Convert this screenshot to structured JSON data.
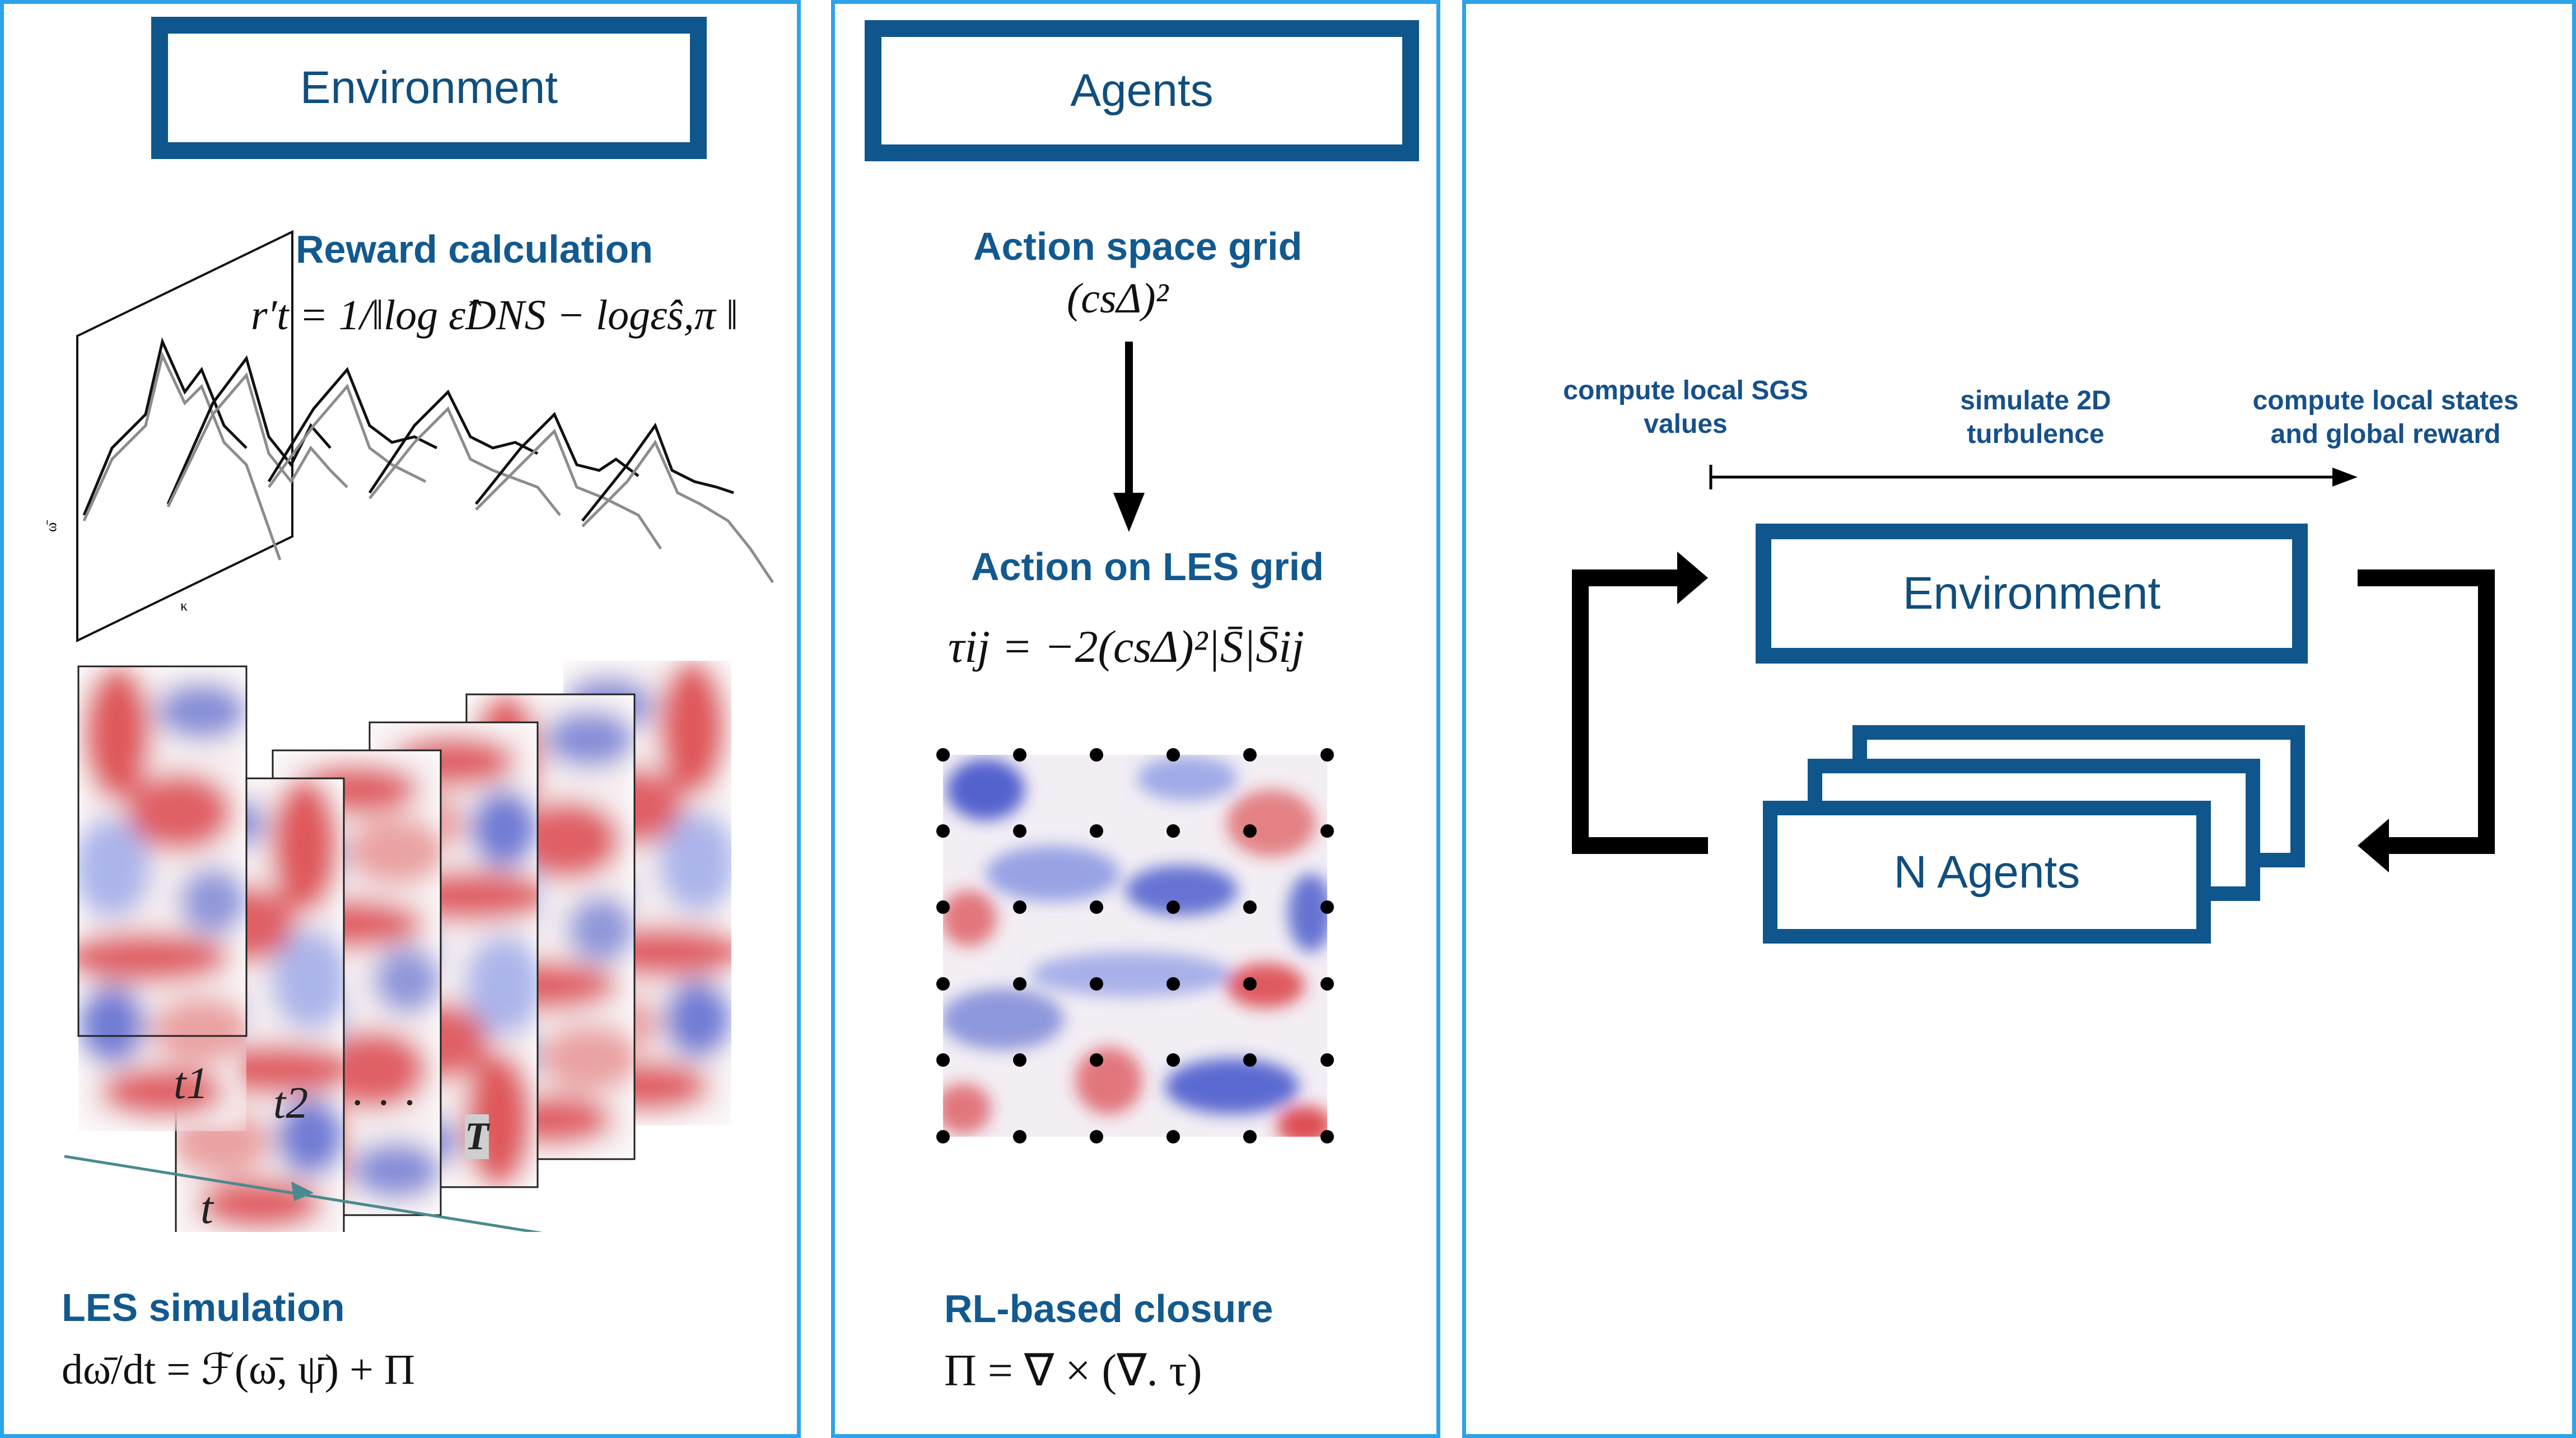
{
  "colors": {
    "panel_border": "#2ea3ea",
    "box_border": "#0f568c",
    "heading_blue": "#12598f",
    "vortex_red": "#d7252b",
    "vortex_blue": "#2a3fc4"
  },
  "left_panel": {
    "title": "Environment",
    "reward_heading": "Reward calculation",
    "reward_formula": "r′t = 1/‖log ε̂DNS − logε̂s,π ‖",
    "spectrum_axis_y": "ω̄",
    "spectrum_axis_x": "κ",
    "time_labels": [
      "t1",
      "t2",
      "· · ·",
      "T"
    ],
    "time_axis_label": "t",
    "les_heading": "LES simulation",
    "les_formula": "dω̄/dt = ℱ(ω̄, ψ̄) + Π"
  },
  "middle_panel": {
    "title": "Agents",
    "action_space_heading": "Action space grid",
    "action_space_formula": "(csΔ)²",
    "action_les_heading": "Action on LES grid",
    "tau_formula": "τij = −2(csΔ)²|S̄|S̄ij",
    "closure_heading": "RL-based closure",
    "closure_formula": "Π = ∇ × (∇. τ)"
  },
  "right_panel": {
    "step_labels": [
      "compute local SGS values",
      "simulate 2D turbulence",
      "compute local states and global reward"
    ],
    "environment_label": "Environment",
    "agents_label": "N Agents"
  }
}
